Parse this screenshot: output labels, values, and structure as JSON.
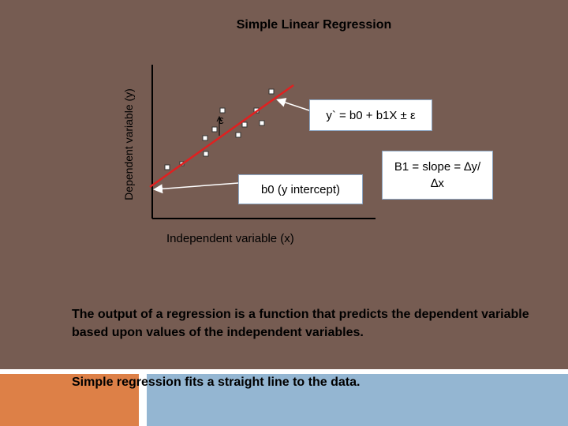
{
  "slide": {
    "title": "Simple Linear Regression",
    "y_axis_label": "Dependent variable (y)",
    "x_axis_label": "Independent variable (x)",
    "epsilon_label": "ε",
    "callout_equation": "y` = b0 + b1X ± ε",
    "callout_intercept": "b0 (y intercept)",
    "callout_slope": "B1 = slope = ∆y/ ∆x",
    "body_text": "The output of a regression is a function that predicts the dependent variable based upon values of the independent variables.",
    "bottom_text": "Simple regression fits a straight line to the data."
  },
  "colors": {
    "background": "#765c52",
    "regression_line": "#e02020",
    "callout_border": "#8da7c4",
    "accent_orange": "#dd8047",
    "accent_blue": "#94b6d2"
  }
}
